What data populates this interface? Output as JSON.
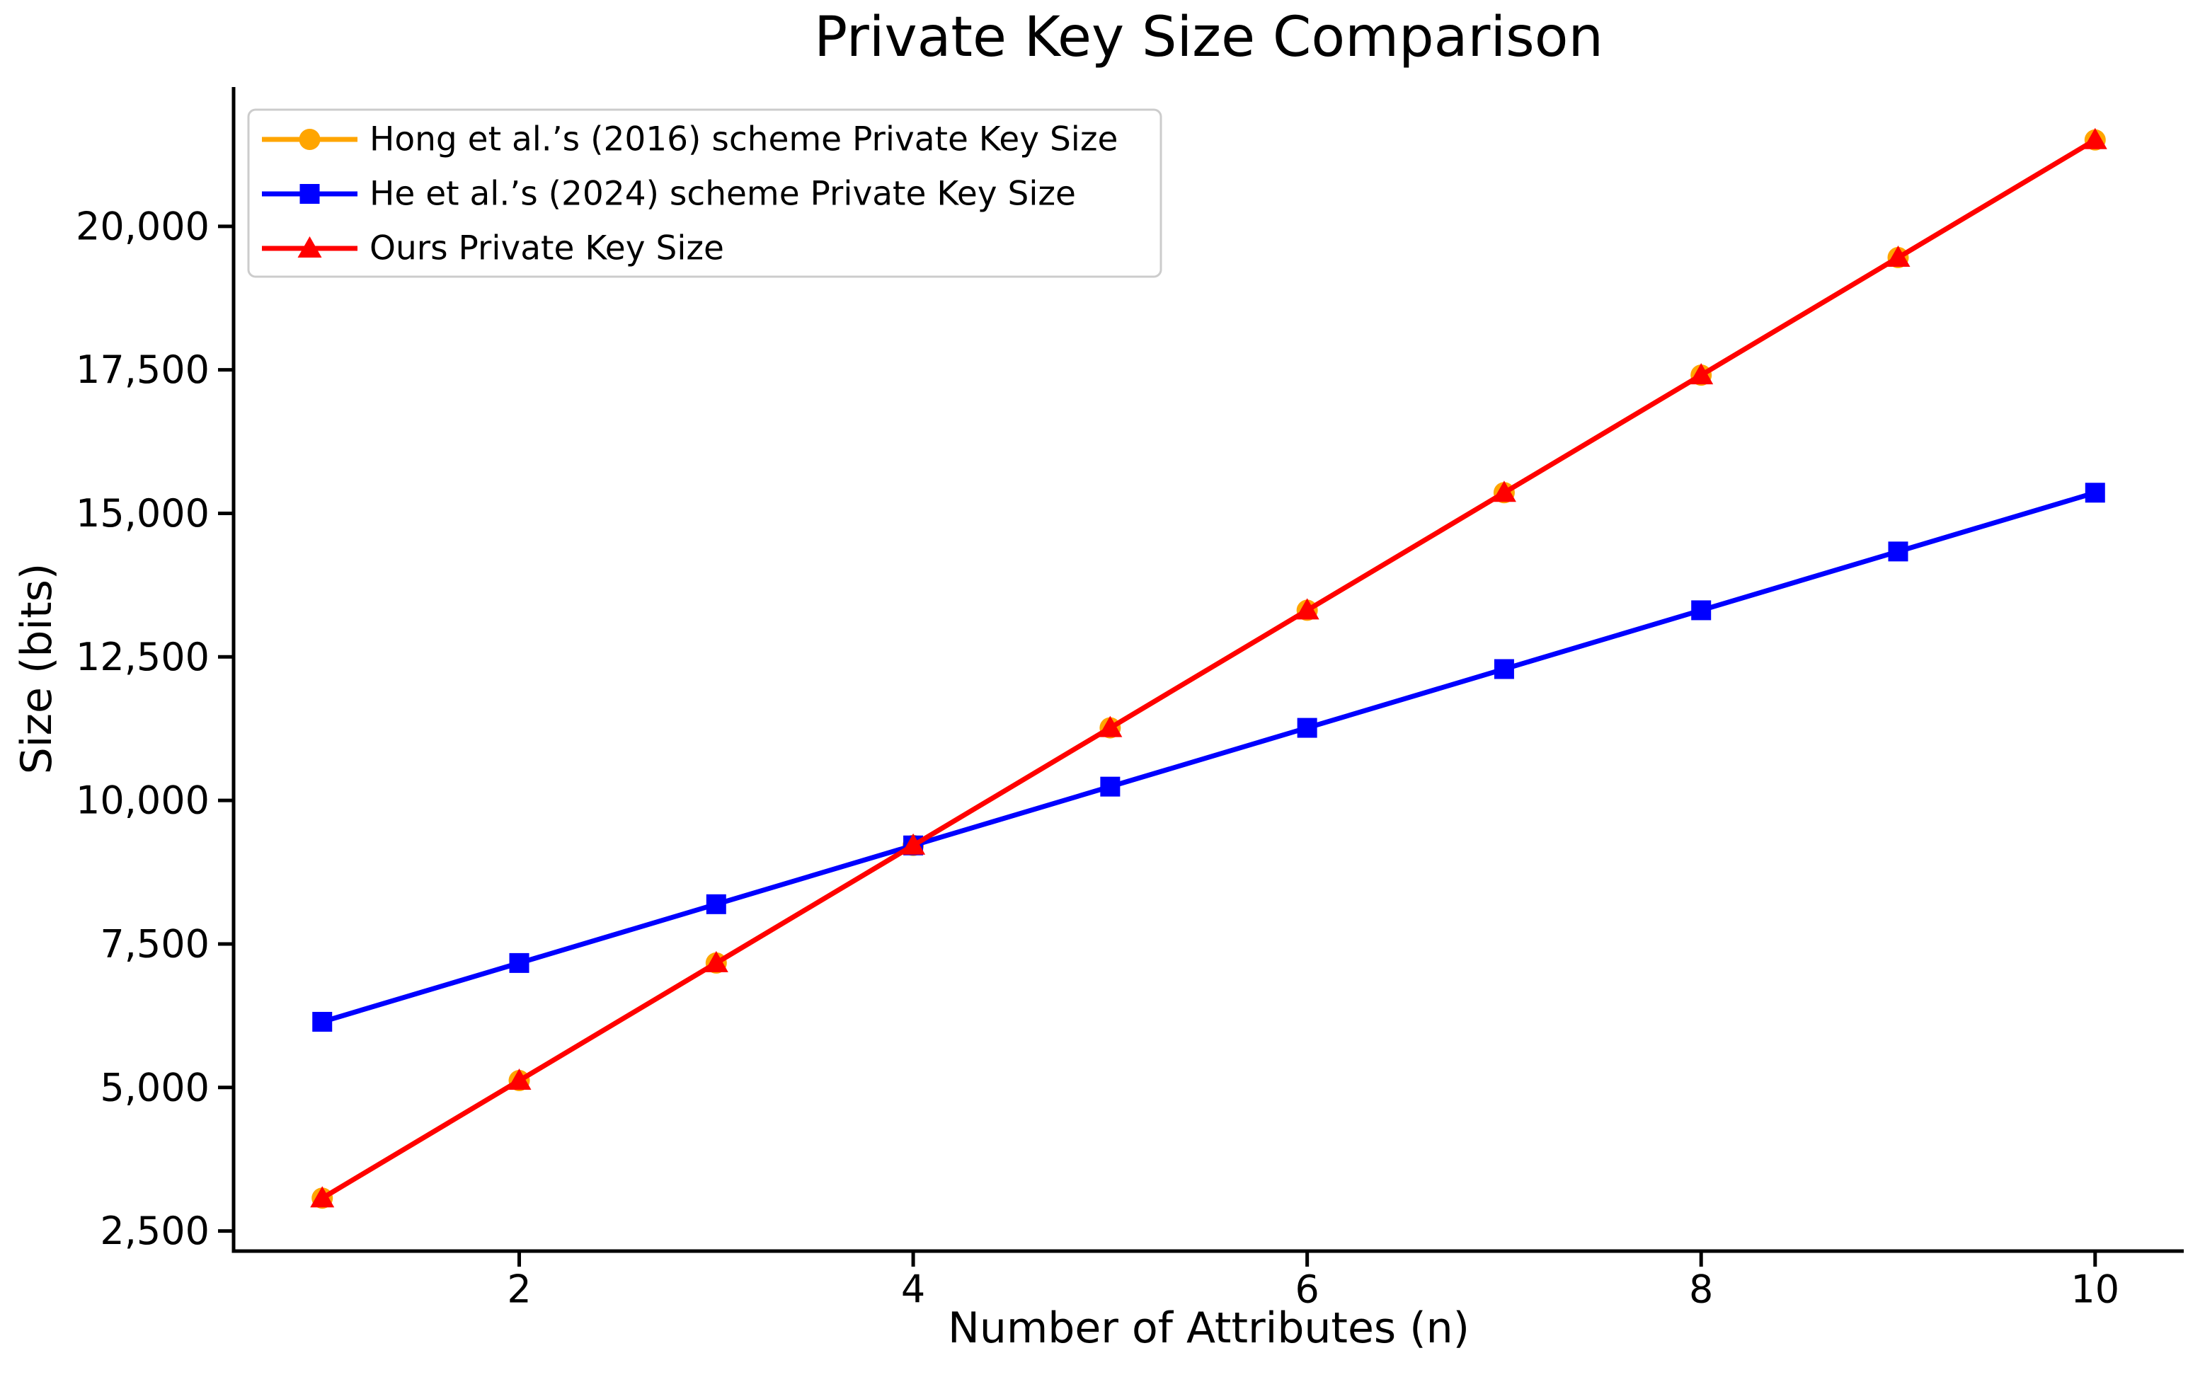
{
  "chart_data": {
    "type": "line",
    "title": "Private Key Size Comparison",
    "xlabel": "Number of Attributes (n)",
    "ylabel": "Size (bits)",
    "x": [
      1,
      2,
      3,
      4,
      5,
      6,
      7,
      8,
      9,
      10
    ],
    "series": [
      {
        "name": "Hong et al.’s (2016) scheme Private Key Size",
        "color": "#FFA500",
        "marker": "circle",
        "values": [
          3072,
          5120,
          7168,
          9216,
          11264,
          13312,
          15360,
          17408,
          19456,
          21504
        ]
      },
      {
        "name": "He et al.’s (2024) scheme Private Key Size",
        "color": "#0000FF",
        "marker": "square",
        "values": [
          6144,
          7168,
          8192,
          9216,
          10240,
          11264,
          12288,
          13312,
          14336,
          15360
        ]
      },
      {
        "name": "Ours Private Key Size",
        "color": "#FF0000",
        "marker": "triangle-up",
        "values": [
          3072,
          5120,
          7168,
          9216,
          11264,
          13312,
          15360,
          17408,
          19456,
          21504
        ]
      }
    ],
    "xticks": [
      2,
      4,
      6,
      8,
      10
    ],
    "yticks": [
      2500,
      5000,
      7500,
      10000,
      12500,
      15000,
      17500,
      20000
    ],
    "ytick_labels": [
      "2,500",
      "5,000",
      "7,500",
      "10,000",
      "12,500",
      "15,000",
      "17,500",
      "20,000"
    ],
    "xlim": [
      0.55,
      10.45
    ],
    "ylim": [
      2150,
      22426
    ],
    "grid": false,
    "legend_position": "upper-left",
    "axis_color": "#000000",
    "legend_border_color": "#cccccc",
    "legend_background": "#ffffff"
  }
}
